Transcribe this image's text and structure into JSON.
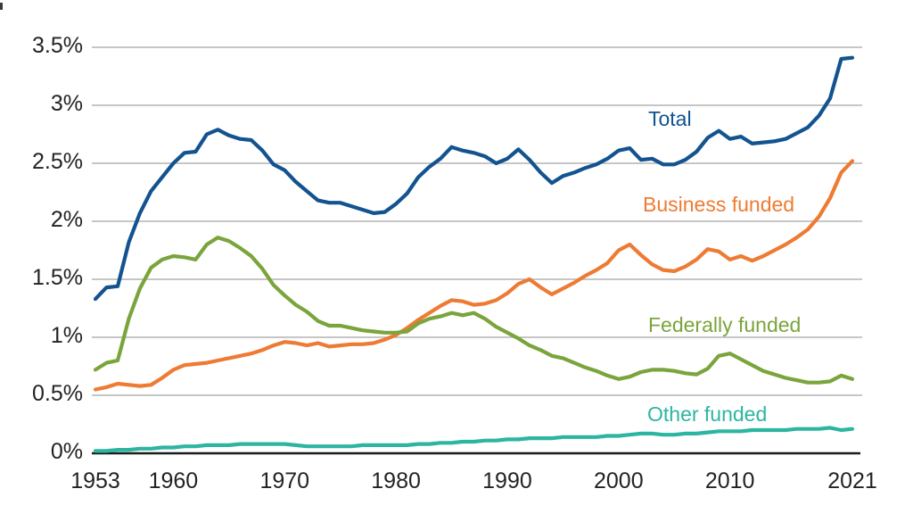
{
  "chart_data": {
    "type": "line",
    "grid": "horizontal",
    "legend_position": "inline-right-of-plot",
    "ylim": [
      0,
      3.5
    ],
    "xlim": [
      1953,
      2021
    ],
    "y_unit": "% of GDP",
    "x": [
      1953,
      1954,
      1955,
      1956,
      1957,
      1958,
      1959,
      1960,
      1961,
      1962,
      1963,
      1964,
      1965,
      1966,
      1967,
      1968,
      1969,
      1970,
      1971,
      1972,
      1973,
      1974,
      1975,
      1976,
      1977,
      1978,
      1979,
      1980,
      1981,
      1982,
      1983,
      1984,
      1985,
      1986,
      1987,
      1988,
      1989,
      1990,
      1991,
      1992,
      1993,
      1994,
      1995,
      1996,
      1997,
      1998,
      1999,
      2000,
      2001,
      2002,
      2003,
      2004,
      2005,
      2006,
      2007,
      2008,
      2009,
      2010,
      2011,
      2012,
      2013,
      2014,
      2015,
      2016,
      2017,
      2018,
      2019,
      2020,
      2021
    ],
    "x_ticks": [
      {
        "year": 1953,
        "label": "1953"
      },
      {
        "year": 1960,
        "label": "1960"
      },
      {
        "year": 1970,
        "label": "1970"
      },
      {
        "year": 1980,
        "label": "1980"
      },
      {
        "year": 1990,
        "label": "1990"
      },
      {
        "year": 2000,
        "label": "2000"
      },
      {
        "year": 2010,
        "label": "2010"
      },
      {
        "year": 2021,
        "label": "2021"
      }
    ],
    "y_ticks": [
      {
        "value": 0,
        "label": "0%"
      },
      {
        "value": 0.5,
        "label": "0.5%"
      },
      {
        "value": 1,
        "label": "1%"
      },
      {
        "value": 1.5,
        "label": "1.5%"
      },
      {
        "value": 2,
        "label": "2%"
      },
      {
        "value": 2.5,
        "label": "2.5%"
      },
      {
        "value": 3,
        "label": "3%"
      },
      {
        "value": 3.5,
        "label": "3.5%"
      }
    ],
    "grid_color": "#b3b3b3",
    "axis_color": "#1a1a1a",
    "series": [
      {
        "name": "Total",
        "color": "#125390",
        "values": [
          1.33,
          1.43,
          1.44,
          1.82,
          2.07,
          2.26,
          2.38,
          2.5,
          2.59,
          2.6,
          2.75,
          2.79,
          2.74,
          2.71,
          2.7,
          2.61,
          2.49,
          2.44,
          2.34,
          2.26,
          2.18,
          2.16,
          2.16,
          2.13,
          2.1,
          2.07,
          2.08,
          2.15,
          2.24,
          2.38,
          2.47,
          2.54,
          2.64,
          2.61,
          2.59,
          2.56,
          2.5,
          2.54,
          2.62,
          2.53,
          2.42,
          2.33,
          2.39,
          2.42,
          2.46,
          2.49,
          2.54,
          2.61,
          2.63,
          2.53,
          2.54,
          2.49,
          2.49,
          2.53,
          2.6,
          2.72,
          2.78,
          2.71,
          2.73,
          2.67,
          2.68,
          2.69,
          2.71,
          2.76,
          2.81,
          2.91,
          3.06,
          3.4,
          3.41
        ]
      },
      {
        "name": "Business funded",
        "color": "#ee7b33",
        "values": [
          0.55,
          0.57,
          0.6,
          0.59,
          0.58,
          0.59,
          0.65,
          0.72,
          0.76,
          0.77,
          0.78,
          0.8,
          0.82,
          0.84,
          0.86,
          0.89,
          0.93,
          0.96,
          0.95,
          0.93,
          0.95,
          0.92,
          0.93,
          0.94,
          0.94,
          0.95,
          0.98,
          1.02,
          1.08,
          1.15,
          1.21,
          1.27,
          1.32,
          1.31,
          1.28,
          1.29,
          1.32,
          1.38,
          1.46,
          1.5,
          1.43,
          1.37,
          1.42,
          1.47,
          1.53,
          1.58,
          1.64,
          1.75,
          1.8,
          1.71,
          1.63,
          1.58,
          1.57,
          1.61,
          1.67,
          1.76,
          1.74,
          1.67,
          1.7,
          1.66,
          1.7,
          1.75,
          1.8,
          1.86,
          1.93,
          2.04,
          2.2,
          2.42,
          2.52
        ]
      },
      {
        "name": "Federally funded",
        "color": "#7aa43c",
        "values": [
          0.72,
          0.78,
          0.8,
          1.16,
          1.42,
          1.6,
          1.67,
          1.7,
          1.69,
          1.67,
          1.8,
          1.86,
          1.83,
          1.77,
          1.7,
          1.59,
          1.45,
          1.36,
          1.28,
          1.22,
          1.14,
          1.1,
          1.1,
          1.08,
          1.06,
          1.05,
          1.04,
          1.04,
          1.05,
          1.12,
          1.16,
          1.18,
          1.21,
          1.19,
          1.21,
          1.16,
          1.09,
          1.04,
          0.99,
          0.93,
          0.89,
          0.84,
          0.82,
          0.78,
          0.74,
          0.71,
          0.67,
          0.64,
          0.66,
          0.7,
          0.72,
          0.72,
          0.71,
          0.69,
          0.68,
          0.73,
          0.84,
          0.86,
          0.81,
          0.76,
          0.71,
          0.68,
          0.65,
          0.63,
          0.61,
          0.61,
          0.62,
          0.67,
          0.64
        ]
      },
      {
        "name": "Other funded",
        "color": "#2db5a1",
        "values": [
          0.02,
          0.02,
          0.03,
          0.03,
          0.04,
          0.04,
          0.05,
          0.05,
          0.06,
          0.06,
          0.07,
          0.07,
          0.07,
          0.08,
          0.08,
          0.08,
          0.08,
          0.08,
          0.07,
          0.06,
          0.06,
          0.06,
          0.06,
          0.06,
          0.07,
          0.07,
          0.07,
          0.07,
          0.07,
          0.08,
          0.08,
          0.09,
          0.09,
          0.1,
          0.1,
          0.11,
          0.11,
          0.12,
          0.12,
          0.13,
          0.13,
          0.13,
          0.14,
          0.14,
          0.14,
          0.14,
          0.15,
          0.15,
          0.16,
          0.17,
          0.17,
          0.16,
          0.16,
          0.17,
          0.17,
          0.18,
          0.19,
          0.19,
          0.19,
          0.2,
          0.2,
          0.2,
          0.2,
          0.21,
          0.21,
          0.21,
          0.22,
          0.2,
          0.21
        ]
      }
    ]
  }
}
